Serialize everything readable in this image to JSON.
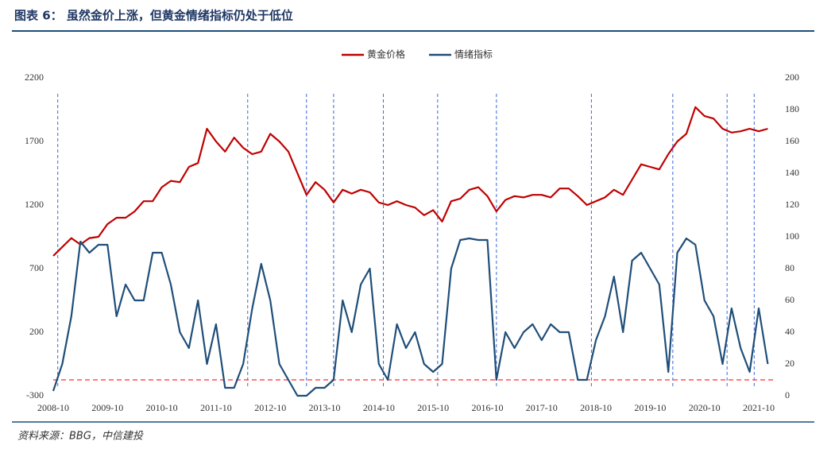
{
  "chart_data": {
    "type": "line",
    "title": "图表 6：  虽然金价上涨，但黄金情绪指标仍处于低位",
    "source": "资料来源：BBG，中信建投",
    "x": [
      "2008-10",
      "2008-12",
      "2009-02",
      "2009-04",
      "2009-06",
      "2009-08",
      "2009-10",
      "2009-12",
      "2010-02",
      "2010-04",
      "2010-06",
      "2010-08",
      "2010-10",
      "2010-12",
      "2011-02",
      "2011-04",
      "2011-06",
      "2011-08",
      "2011-10",
      "2011-12",
      "2012-02",
      "2012-04",
      "2012-06",
      "2012-08",
      "2012-10",
      "2012-12",
      "2013-02",
      "2013-04",
      "2013-06",
      "2013-08",
      "2013-10",
      "2013-12",
      "2014-02",
      "2014-04",
      "2014-06",
      "2014-08",
      "2014-10",
      "2014-12",
      "2015-02",
      "2015-04",
      "2015-06",
      "2015-08",
      "2015-10",
      "2015-12",
      "2016-02",
      "2016-04",
      "2016-06",
      "2016-08",
      "2016-10",
      "2016-12",
      "2017-02",
      "2017-04",
      "2017-06",
      "2017-08",
      "2017-10",
      "2017-12",
      "2018-02",
      "2018-04",
      "2018-06",
      "2018-08",
      "2018-10",
      "2018-12",
      "2019-02",
      "2019-04",
      "2019-06",
      "2019-08",
      "2019-10",
      "2019-12",
      "2020-02",
      "2020-04",
      "2020-06",
      "2020-08",
      "2020-10",
      "2020-12",
      "2021-02",
      "2021-04",
      "2021-06",
      "2021-08",
      "2021-10",
      "2021-12"
    ],
    "series": [
      {
        "name": "黄金价格",
        "color": "#c00000",
        "values": [
          800,
          870,
          940,
          890,
          940,
          950,
          1050,
          1100,
          1100,
          1150,
          1230,
          1230,
          1340,
          1390,
          1380,
          1500,
          1530,
          1800,
          1700,
          1620,
          1730,
          1650,
          1600,
          1620,
          1760,
          1700,
          1620,
          1450,
          1280,
          1380,
          1320,
          1220,
          1320,
          1290,
          1320,
          1300,
          1220,
          1200,
          1230,
          1200,
          1180,
          1120,
          1160,
          1070,
          1230,
          1250,
          1320,
          1340,
          1270,
          1150,
          1240,
          1270,
          1260,
          1280,
          1280,
          1260,
          1330,
          1330,
          1270,
          1200,
          1230,
          1260,
          1320,
          1280,
          1400,
          1520,
          1500,
          1480,
          1600,
          1700,
          1760,
          1970,
          1900,
          1880,
          1800,
          1770,
          1780,
          1800,
          1780,
          1800
        ]
      },
      {
        "name": "情绪指标",
        "color": "#1f4e79",
        "axis": "y2",
        "values": [
          3,
          20,
          50,
          97,
          90,
          95,
          95,
          50,
          70,
          60,
          60,
          90,
          90,
          70,
          40,
          30,
          60,
          20,
          45,
          5,
          5,
          20,
          55,
          83,
          60,
          20,
          10,
          0,
          0,
          5,
          5,
          10,
          60,
          40,
          70,
          80,
          20,
          10,
          45,
          30,
          40,
          20,
          15,
          20,
          80,
          98,
          99,
          98,
          98,
          10,
          40,
          30,
          40,
          45,
          35,
          45,
          40,
          40,
          10,
          10,
          35,
          50,
          75,
          40,
          85,
          90,
          80,
          70,
          15,
          90,
          99,
          95,
          60,
          50,
          20,
          55,
          30,
          15,
          55,
          20
        ]
      }
    ],
    "ylim": [
      -300,
      2200
    ],
    "yticks": [
      -300,
      200,
      700,
      1200,
      1700,
      2200
    ],
    "y2lim": [
      0,
      200
    ],
    "y2ticks": [
      0,
      20,
      40,
      60,
      80,
      100,
      120,
      140,
      160,
      180,
      200
    ],
    "xticks": [
      "2008-10",
      "2009-10",
      "2010-10",
      "2011-10",
      "2012-10",
      "2013-10",
      "2014-10",
      "2015-10",
      "2016-10",
      "2017-10",
      "2018-10",
      "2019-10",
      "2020-10",
      "2021-10"
    ],
    "reference_line": {
      "axis": "y2",
      "value": 10,
      "color": "#ff5050"
    },
    "highlight_x": [
      "2008-11",
      "2012-05",
      "2013-06",
      "2013-12",
      "2014-11",
      "2015-11",
      "2016-12",
      "2018-09",
      "2020-03",
      "2021-03",
      "2021-09"
    ],
    "highlight_color": "#3a66d6",
    "legend": "top"
  }
}
